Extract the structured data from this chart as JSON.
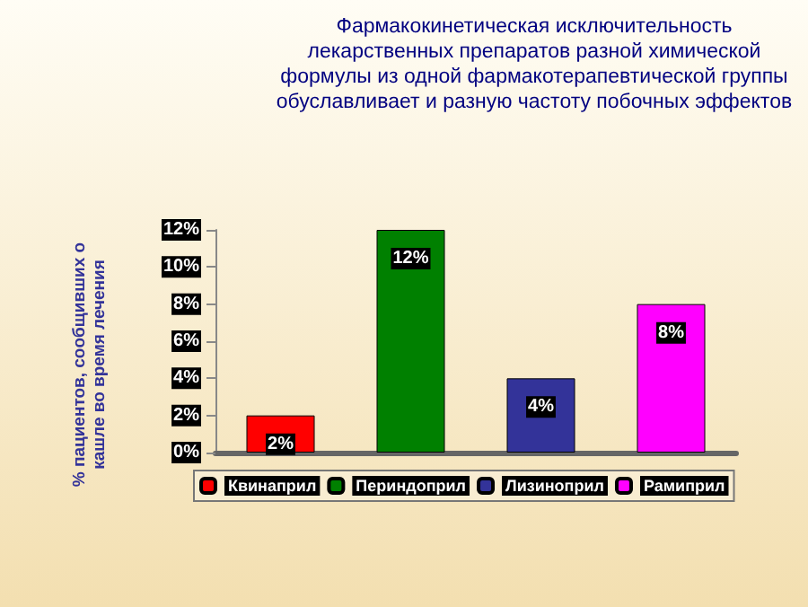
{
  "chart_data": {
    "type": "bar",
    "title": "Фармакокинетическая  исключительность лекарственных препаратов разной химической формулы из одной фармакотерапевтической группы обуславливает и разную частоту побочных эффектов",
    "ylabel": "% пациентов, сообщивших о кашле во время лечения",
    "categories": [
      null,
      null,
      null,
      null
    ],
    "stacked": true,
    "series": [
      {
        "name": "Квинаприл",
        "color": "#ff0000",
        "values": [
          2,
          null,
          null,
          null
        ],
        "value_labels": [
          "2%",
          null,
          null,
          null
        ]
      },
      {
        "name": "Периндоприл",
        "color": "#008000",
        "values": [
          null,
          12,
          null,
          null
        ],
        "value_labels": [
          null,
          "12%",
          null,
          null
        ]
      },
      {
        "name": "Лизиноприл",
        "color": "#333399",
        "values": [
          null,
          null,
          4,
          null
        ],
        "value_labels": [
          null,
          null,
          "4%",
          null
        ]
      },
      {
        "name": "Рамиприл",
        "color": "#ff00ff",
        "values": [
          null,
          null,
          null,
          8
        ],
        "value_labels": [
          null,
          null,
          null,
          "8%"
        ]
      }
    ],
    "ylim": [
      0,
      12
    ],
    "yticks": [
      {
        "value": 0,
        "label": "0%"
      },
      {
        "value": 2,
        "label": "2%"
      },
      {
        "value": 4,
        "label": "4%"
      },
      {
        "value": 6,
        "label": "6%"
      },
      {
        "value": 8,
        "label": "8%"
      },
      {
        "value": 10,
        "label": "10%"
      },
      {
        "value": 12,
        "label": "12%"
      }
    ],
    "grid": false,
    "legend": "bottom"
  }
}
